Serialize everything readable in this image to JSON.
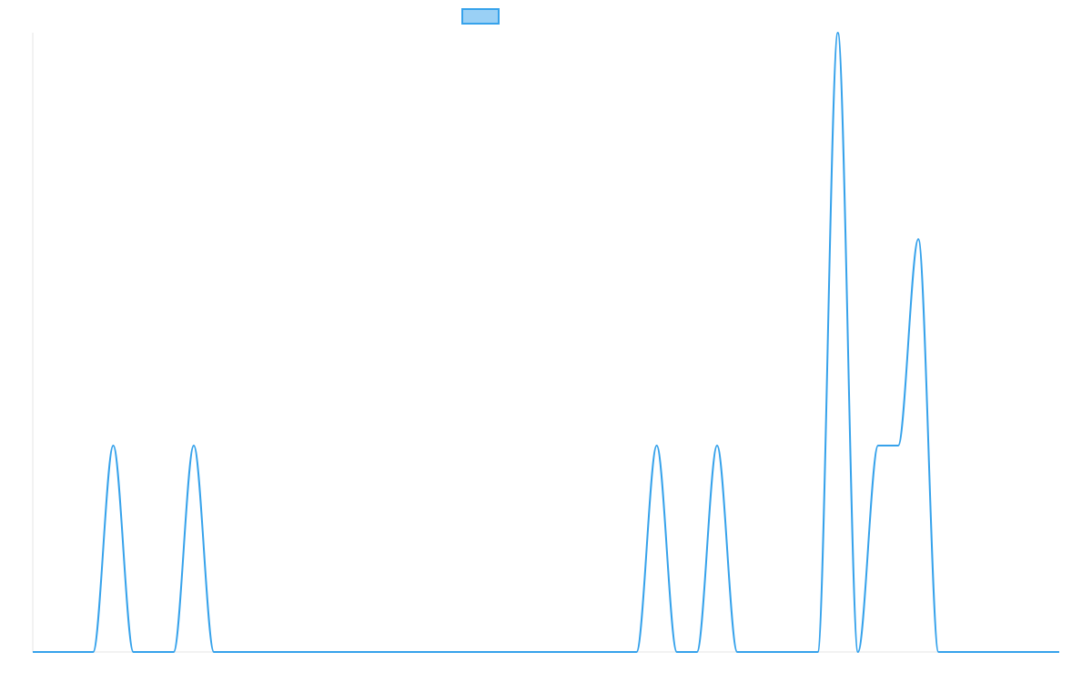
{
  "chart_data": {
    "type": "line",
    "title": "",
    "xlabel": "",
    "ylabel": "",
    "grid": false,
    "legend_position": "top",
    "x_range": [
      0,
      51
    ],
    "ylim": [
      0,
      3
    ],
    "series": [
      {
        "name": "",
        "color": "#36a2eb",
        "fill_color": "#9ad0f5",
        "smooth": true,
        "values": [
          0,
          0,
          0,
          0,
          1,
          0,
          0,
          0,
          1,
          0,
          0,
          0,
          0,
          0,
          0,
          0,
          0,
          0,
          0,
          0,
          0,
          0,
          0,
          0,
          0,
          0,
          0,
          0,
          0,
          0,
          0,
          1,
          0,
          0,
          1,
          0,
          0,
          0,
          0,
          0,
          3,
          0,
          1,
          1,
          2,
          0,
          0,
          0,
          0,
          0,
          0,
          0
        ]
      }
    ]
  }
}
